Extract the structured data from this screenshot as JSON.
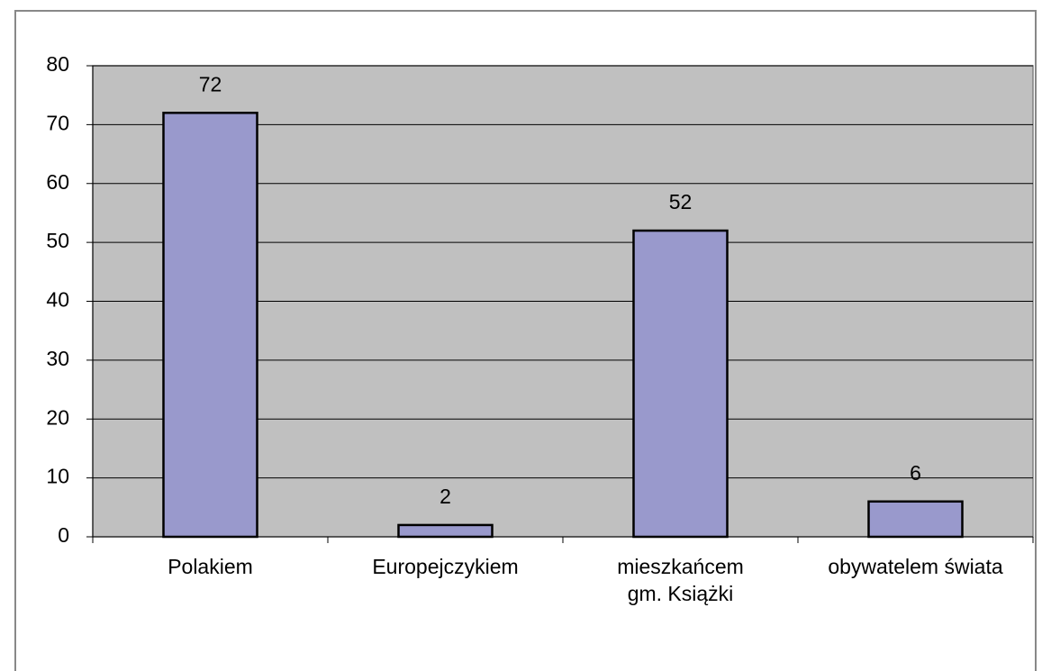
{
  "chart_data": {
    "type": "bar",
    "categories": [
      "Polakiem",
      "Europejczykiem",
      "mieszkańcem\ngm. Książki",
      "obywatelem świata"
    ],
    "values": [
      72,
      2,
      52,
      6
    ],
    "color": "#9999cc",
    "background": "#c0c0c0",
    "ylim": [
      0,
      80
    ],
    "yticks": [
      0,
      10,
      20,
      30,
      40,
      50,
      60,
      70,
      80
    ],
    "grid": true
  }
}
